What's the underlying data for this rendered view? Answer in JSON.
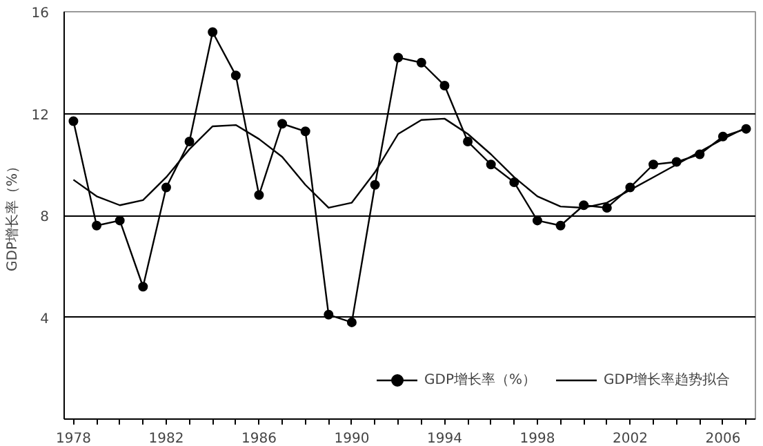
{
  "chart_data": {
    "type": "line",
    "ylabel": "GDP增长率（%）",
    "x": [
      1978,
      1979,
      1980,
      1981,
      1982,
      1983,
      1984,
      1985,
      1986,
      1987,
      1988,
      1989,
      1990,
      1991,
      1992,
      1993,
      1994,
      1995,
      1996,
      1997,
      1998,
      1999,
      2000,
      2001,
      2002,
      2003,
      2004,
      2005,
      2006,
      2007
    ],
    "series": [
      {
        "name": "GDP增长率（%）",
        "color": "#000000",
        "marker": "circle",
        "values": [
          11.7,
          7.6,
          7.8,
          5.2,
          9.1,
          10.9,
          15.2,
          13.5,
          8.8,
          11.6,
          11.3,
          4.1,
          3.8,
          9.2,
          14.2,
          14.0,
          13.1,
          10.9,
          10.0,
          9.3,
          7.8,
          7.6,
          8.4,
          8.3,
          9.1,
          10.0,
          10.1,
          10.4,
          11.1,
          11.4
        ]
      },
      {
        "name": "GDP增长率趋势拟合",
        "color": "#000000",
        "marker": "none",
        "values": [
          9.4,
          8.75,
          8.4,
          8.6,
          9.5,
          10.6,
          11.5,
          11.55,
          11.0,
          10.3,
          9.2,
          8.3,
          8.5,
          9.7,
          11.2,
          11.75,
          11.8,
          11.2,
          10.4,
          9.5,
          8.75,
          8.35,
          8.3,
          8.5,
          9.0,
          9.5,
          10.0,
          10.5,
          11.0,
          11.45
        ]
      }
    ],
    "xlim": [
      1977.6,
      2007.4
    ],
    "ylim": [
      0,
      16
    ],
    "xticks": [
      1978,
      {
        "value": 1979,
        "label": null
      },
      {
        "value": 1980,
        "label": null
      },
      {
        "value": 1981,
        "label": null
      },
      1982,
      {
        "value": 1983,
        "label": null
      },
      {
        "value": 1984,
        "label": null
      },
      {
        "value": 1985,
        "label": null
      },
      1986,
      {
        "value": 1987,
        "label": null
      },
      {
        "value": 1988,
        "label": null
      },
      {
        "value": 1989,
        "label": null
      },
      1990,
      {
        "value": 1991,
        "label": null
      },
      {
        "value": 1992,
        "label": null
      },
      {
        "value": 1993,
        "label": null
      },
      1994,
      {
        "value": 1995,
        "label": null
      },
      {
        "value": 1996,
        "label": null
      },
      {
        "value": 1997,
        "label": null
      },
      1998,
      {
        "value": 1999,
        "label": null
      },
      {
        "value": 2000,
        "label": null
      },
      {
        "value": 2001,
        "label": null
      },
      2002,
      {
        "value": 2003,
        "label": null
      },
      {
        "value": 2004,
        "label": null
      },
      {
        "value": 2005,
        "label": null
      },
      2006,
      {
        "value": 2007,
        "label": null
      }
    ],
    "yticks": [
      4,
      8,
      12,
      16
    ],
    "grid": "y",
    "legend": "bottom right",
    "line_style": "solid"
  }
}
